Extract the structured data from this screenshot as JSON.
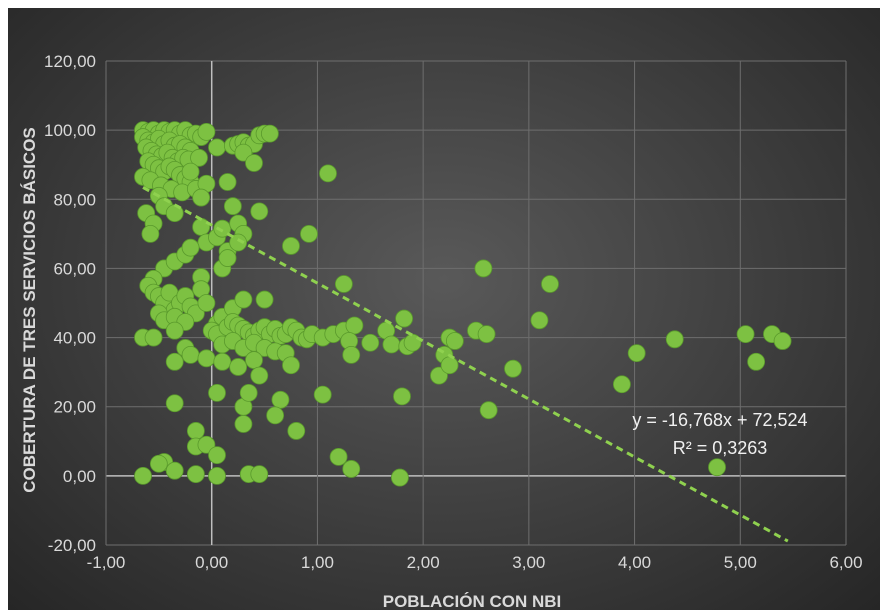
{
  "chart_data": {
    "type": "scatter",
    "title": "",
    "xlabel": "POBLACIÓN CON NBI",
    "ylabel": "COBERTURA DE TRES SERVICIOS BÁSICOS",
    "xlim": [
      -1,
      6
    ],
    "ylim": [
      -20,
      120
    ],
    "x_ticks": [
      "-1,00",
      "0,00",
      "1,00",
      "2,00",
      "3,00",
      "4,00",
      "5,00",
      "6,00"
    ],
    "y_ticks": [
      "-20,00",
      "0,00",
      "20,00",
      "40,00",
      "60,00",
      "80,00",
      "100,00",
      "120,00"
    ],
    "grid": true,
    "marker_color": "#7dc142",
    "trendline": {
      "type": "linear",
      "slope": -16.768,
      "intercept": 72.524,
      "x_range": [
        -0.65,
        5.45
      ],
      "color": "#8fd14f",
      "equation_label": "y = -16,768x + 72,524",
      "r2_label": "R² = 0,3263"
    },
    "points": [
      [
        -0.65,
        100
      ],
      [
        -0.6,
        99.5
      ],
      [
        -0.55,
        100
      ],
      [
        -0.5,
        99
      ],
      [
        -0.45,
        100
      ],
      [
        -0.4,
        99.5
      ],
      [
        -0.35,
        100
      ],
      [
        -0.3,
        99
      ],
      [
        -0.25,
        100
      ],
      [
        -0.2,
        98.5
      ],
      [
        -0.15,
        99
      ],
      [
        -0.1,
        98
      ],
      [
        -0.05,
        99.5
      ],
      [
        -0.65,
        98
      ],
      [
        -0.6,
        97
      ],
      [
        -0.55,
        96.5
      ],
      [
        -0.5,
        97.5
      ],
      [
        -0.45,
        96
      ],
      [
        -0.4,
        97
      ],
      [
        -0.35,
        95.5
      ],
      [
        -0.3,
        96
      ],
      [
        -0.25,
        95
      ],
      [
        -0.2,
        94
      ],
      [
        -0.62,
        95
      ],
      [
        -0.57,
        94
      ],
      [
        -0.52,
        93
      ],
      [
        -0.47,
        92.5
      ],
      [
        -0.42,
        93.5
      ],
      [
        -0.37,
        92
      ],
      [
        -0.32,
        91
      ],
      [
        -0.27,
        92
      ],
      [
        -0.22,
        91.5
      ],
      [
        -0.12,
        92
      ],
      [
        -0.6,
        91
      ],
      [
        -0.55,
        90
      ],
      [
        -0.5,
        89
      ],
      [
        -0.45,
        88
      ],
      [
        -0.4,
        89.5
      ],
      [
        -0.35,
        88.5
      ],
      [
        -0.3,
        87
      ],
      [
        -0.25,
        86
      ],
      [
        -0.2,
        85
      ],
      [
        -0.65,
        86.5
      ],
      [
        -0.58,
        85.5
      ],
      [
        -0.48,
        84
      ],
      [
        -0.38,
        83
      ],
      [
        -0.28,
        82
      ],
      [
        -0.15,
        83
      ],
      [
        -0.05,
        84.5
      ],
      [
        -0.2,
        88
      ],
      [
        -0.1,
        80.5
      ],
      [
        -0.5,
        81
      ],
      [
        -0.45,
        78
      ],
      [
        -0.35,
        76
      ],
      [
        -0.62,
        76
      ],
      [
        -0.55,
        73
      ],
      [
        -0.58,
        70
      ],
      [
        0.05,
        95
      ],
      [
        0.2,
        95.5
      ],
      [
        0.25,
        96
      ],
      [
        0.3,
        96.5
      ],
      [
        0.35,
        95.5
      ],
      [
        0.4,
        96
      ],
      [
        0.45,
        98.5
      ],
      [
        0.5,
        99
      ],
      [
        0.55,
        99
      ],
      [
        0.3,
        93.5
      ],
      [
        0.4,
        90.5
      ],
      [
        0.15,
        85
      ],
      [
        -0.1,
        72
      ],
      [
        -0.05,
        67.5
      ],
      [
        0.05,
        69
      ],
      [
        0.1,
        71.5
      ],
      [
        0.15,
        65
      ],
      [
        0.2,
        78
      ],
      [
        0.25,
        73
      ],
      [
        0.3,
        70
      ],
      [
        0.25,
        67.5
      ],
      [
        0.45,
        76.5
      ],
      [
        -0.45,
        60
      ],
      [
        -0.35,
        62
      ],
      [
        -0.25,
        64
      ],
      [
        -0.2,
        66
      ],
      [
        -0.1,
        57.5
      ],
      [
        0.1,
        60
      ],
      [
        0.15,
        63
      ],
      [
        -0.55,
        57
      ],
      [
        -0.6,
        55
      ],
      [
        -0.55,
        53
      ],
      [
        -0.5,
        52
      ],
      [
        -0.45,
        50
      ],
      [
        -0.4,
        53
      ],
      [
        -0.35,
        48
      ],
      [
        -0.3,
        50
      ],
      [
        -0.25,
        52
      ],
      [
        -0.2,
        49
      ],
      [
        -0.15,
        47
      ],
      [
        -0.1,
        54
      ],
      [
        -0.05,
        50
      ],
      [
        -0.5,
        47
      ],
      [
        -0.45,
        45
      ],
      [
        -0.35,
        46
      ],
      [
        -0.25,
        44.5
      ],
      [
        0.05,
        44
      ],
      [
        0.1,
        46
      ],
      [
        0.2,
        48.5
      ],
      [
        0.3,
        51
      ],
      [
        0.5,
        51
      ],
      [
        0.0,
        42
      ],
      [
        0.05,
        41
      ],
      [
        0.15,
        43
      ],
      [
        0.2,
        44.5
      ],
      [
        0.25,
        43.5
      ],
      [
        0.3,
        42.5
      ],
      [
        0.35,
        41.5
      ],
      [
        0.4,
        40.5
      ],
      [
        0.45,
        42
      ],
      [
        0.5,
        43
      ],
      [
        0.55,
        41
      ],
      [
        0.6,
        42.5
      ],
      [
        0.65,
        40.5
      ],
      [
        0.7,
        41
      ],
      [
        0.75,
        43
      ],
      [
        0.8,
        42
      ],
      [
        0.85,
        40
      ],
      [
        0.9,
        39.5
      ],
      [
        0.95,
        41
      ],
      [
        1.05,
        40
      ],
      [
        1.15,
        41
      ],
      [
        1.25,
        42
      ],
      [
        1.35,
        43.5
      ],
      [
        0.1,
        38
      ],
      [
        0.2,
        39
      ],
      [
        0.3,
        37
      ],
      [
        0.4,
        38.5
      ],
      [
        0.5,
        37
      ],
      [
        0.6,
        36
      ],
      [
        0.7,
        35.5
      ],
      [
        1.3,
        39
      ],
      [
        1.5,
        38.5
      ],
      [
        1.65,
        42
      ],
      [
        1.7,
        38
      ],
      [
        1.82,
        45.5
      ],
      [
        1.85,
        37.5
      ],
      [
        1.9,
        38.5
      ],
      [
        -0.65,
        40
      ],
      [
        -0.55,
        40
      ],
      [
        -0.35,
        42
      ],
      [
        -0.25,
        37
      ],
      [
        -0.2,
        35
      ],
      [
        -0.35,
        33
      ],
      [
        -0.05,
        34
      ],
      [
        0.1,
        33
      ],
      [
        0.25,
        31.5
      ],
      [
        0.4,
        33.5
      ],
      [
        0.45,
        29
      ],
      [
        0.75,
        32
      ],
      [
        1.32,
        35
      ],
      [
        0.05,
        24
      ],
      [
        0.3,
        20
      ],
      [
        0.35,
        24
      ],
      [
        0.65,
        22
      ],
      [
        0.6,
        17.5
      ],
      [
        0.3,
        15
      ],
      [
        0.8,
        13
      ],
      [
        1.05,
        23.5
      ],
      [
        1.8,
        23
      ],
      [
        -0.35,
        21
      ],
      [
        -0.45,
        4
      ],
      [
        -0.5,
        3.5
      ],
      [
        -0.15,
        13
      ],
      [
        -0.15,
        8.5
      ],
      [
        -0.05,
        9
      ],
      [
        0.05,
        6
      ],
      [
        -0.65,
        0
      ],
      [
        -0.35,
        1.5
      ],
      [
        -0.15,
        0.5
      ],
      [
        0.05,
        0
      ],
      [
        0.35,
        0.5
      ],
      [
        0.45,
        0.5
      ],
      [
        1.2,
        5.5
      ],
      [
        1.32,
        2
      ],
      [
        1.78,
        -0.5
      ],
      [
        1.1,
        87.5
      ],
      [
        1.25,
        55.5
      ],
      [
        0.75,
        66.5
      ],
      [
        0.92,
        70
      ],
      [
        2.2,
        35
      ],
      [
        2.15,
        29
      ],
      [
        2.25,
        32
      ],
      [
        2.25,
        40
      ],
      [
        2.3,
        39
      ],
      [
        2.5,
        42
      ],
      [
        2.6,
        41
      ],
      [
        2.57,
        60
      ],
      [
        2.62,
        19
      ],
      [
        2.85,
        31
      ],
      [
        3.1,
        45
      ],
      [
        3.2,
        55.5
      ],
      [
        3.88,
        26.5
      ],
      [
        4.02,
        35.5
      ],
      [
        4.38,
        39.5
      ],
      [
        4.78,
        2.5
      ],
      [
        5.05,
        41
      ],
      [
        5.15,
        33
      ],
      [
        5.3,
        41
      ],
      [
        5.4,
        39
      ]
    ]
  }
}
